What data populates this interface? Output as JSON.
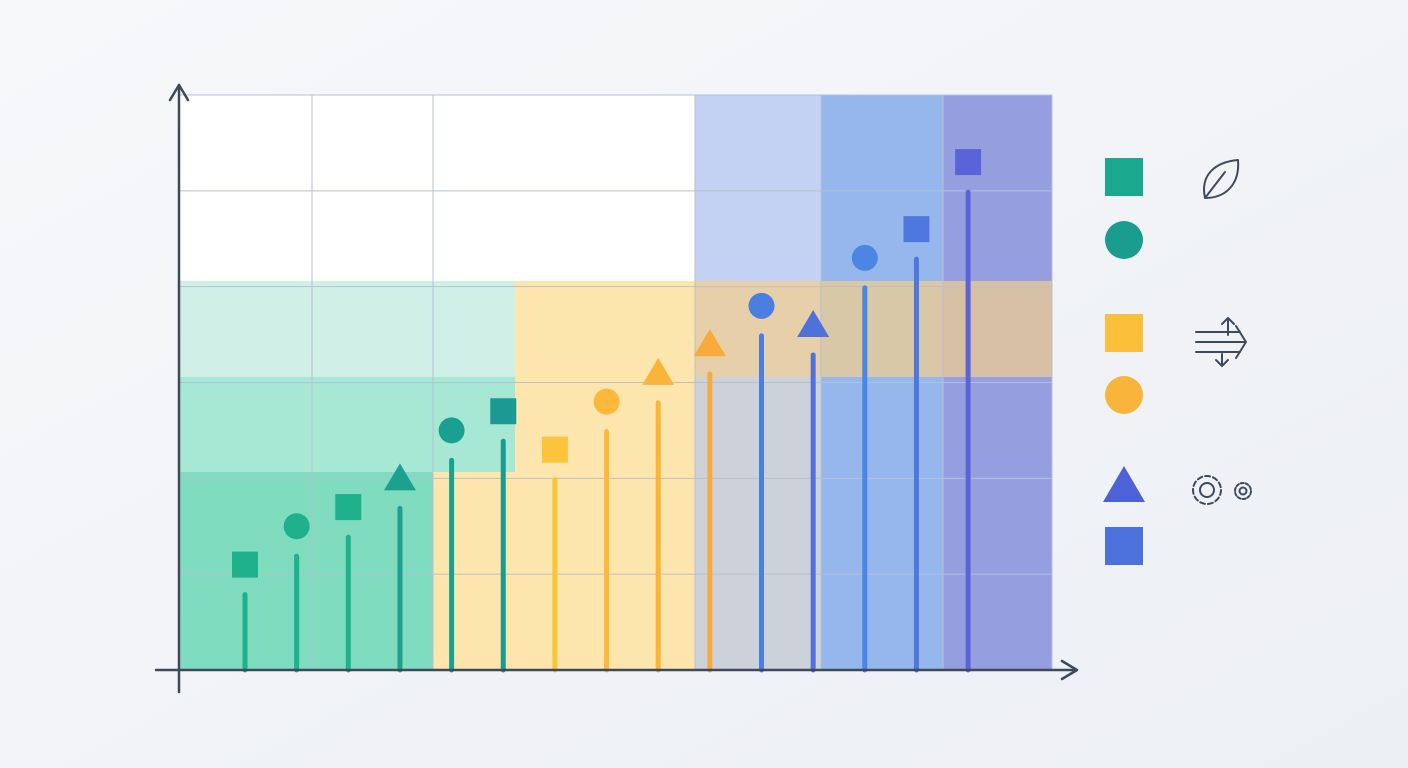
{
  "chart_data": {
    "type": "lollipop",
    "categories": [
      null,
      null,
      null,
      null,
      null,
      null,
      null,
      null,
      null,
      null,
      null,
      null,
      null,
      null,
      null
    ],
    "values": [
      1.1,
      1.5,
      1.7,
      2.0,
      2.5,
      2.7,
      2.3,
      2.8,
      3.1,
      3.4,
      3.8,
      3.6,
      4.3,
      4.6,
      5.3
    ],
    "colors": [
      "#1fb08c",
      "#1fb08c",
      "#1fb08c",
      "#1fa08e",
      "#1aa090",
      "#1a9a92",
      "#fbc43a",
      "#fbb83a",
      "#f9b43a",
      "#f8aa3a",
      "#4a7fe0",
      "#5070dc",
      "#4a86e2",
      "#4f78de",
      "#5a64d8"
    ],
    "markers": [
      "square",
      "circle",
      "square",
      "triangle",
      "circle",
      "square",
      "square",
      "circle",
      "triangle",
      "triangle",
      "circle",
      "triangle",
      "circle",
      "square",
      "square"
    ],
    "ylim": [
      0,
      6
    ],
    "yticks": [
      0,
      1,
      2,
      3,
      4,
      5,
      6
    ],
    "grid": true
  }
}
